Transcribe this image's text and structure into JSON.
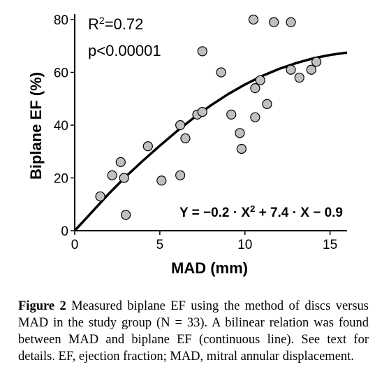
{
  "chart_data": {
    "type": "scatter",
    "xlabel": "MAD (mm)",
    "ylabel": "Biplane EF (%)",
    "xlim": [
      0,
      16
    ],
    "ylim": [
      0,
      80
    ],
    "x_ticks": [
      0,
      5,
      10,
      15
    ],
    "y_ticks": [
      0,
      20,
      40,
      60,
      80
    ],
    "x_tick_labels": [
      "0",
      "5",
      "10",
      "15"
    ],
    "y_tick_labels": [
      "0",
      "20",
      "40",
      "60",
      "80"
    ],
    "grid": false,
    "annotations": {
      "r_squared": "R²=0.72",
      "p_value": "p<0.00001",
      "equation": "Y = −0.2 · X² + 7.4 · X − 0.9"
    },
    "points": [
      {
        "x": 1.5,
        "y": 13
      },
      {
        "x": 2.2,
        "y": 21
      },
      {
        "x": 2.7,
        "y": 26
      },
      {
        "x": 2.9,
        "y": 20
      },
      {
        "x": 3.0,
        "y": 6
      },
      {
        "x": 4.3,
        "y": 32
      },
      {
        "x": 5.1,
        "y": 19
      },
      {
        "x": 6.2,
        "y": 21
      },
      {
        "x": 6.2,
        "y": 40
      },
      {
        "x": 6.5,
        "y": 35
      },
      {
        "x": 7.2,
        "y": 44
      },
      {
        "x": 7.5,
        "y": 45
      },
      {
        "x": 7.5,
        "y": 68
      },
      {
        "x": 8.6,
        "y": 60
      },
      {
        "x": 9.2,
        "y": 44
      },
      {
        "x": 9.7,
        "y": 37
      },
      {
        "x": 9.8,
        "y": 31
      },
      {
        "x": 10.5,
        "y": 80
      },
      {
        "x": 10.6,
        "y": 54
      },
      {
        "x": 10.6,
        "y": 43
      },
      {
        "x": 10.9,
        "y": 57
      },
      {
        "x": 11.3,
        "y": 48
      },
      {
        "x": 11.7,
        "y": 79
      },
      {
        "x": 12.7,
        "y": 79
      },
      {
        "x": 12.7,
        "y": 61
      },
      {
        "x": 13.2,
        "y": 58
      },
      {
        "x": 13.9,
        "y": 61
      },
      {
        "x": 14.2,
        "y": 64
      }
    ],
    "fit_line": {
      "type": "bilinear",
      "x": [
        0,
        1,
        2,
        3,
        4,
        5,
        6,
        7,
        8,
        9,
        10,
        11,
        12,
        13,
        14,
        15,
        16
      ],
      "y": [
        0,
        7,
        14,
        20.5,
        26.5,
        32.2,
        37.7,
        42.8,
        47.5,
        51.7,
        55.4,
        58.6,
        61.3,
        63.5,
        65.3,
        66.6,
        67.5
      ]
    }
  },
  "caption": {
    "label": "Figure 2",
    "text": " Measured biplane EF using the method of discs versus MAD in the study group (N = 33). A bilinear relation was found between MAD and biplane EF (continuous line). See text for details. EF, ejection fraction; MAD, mitral annular displacement."
  }
}
